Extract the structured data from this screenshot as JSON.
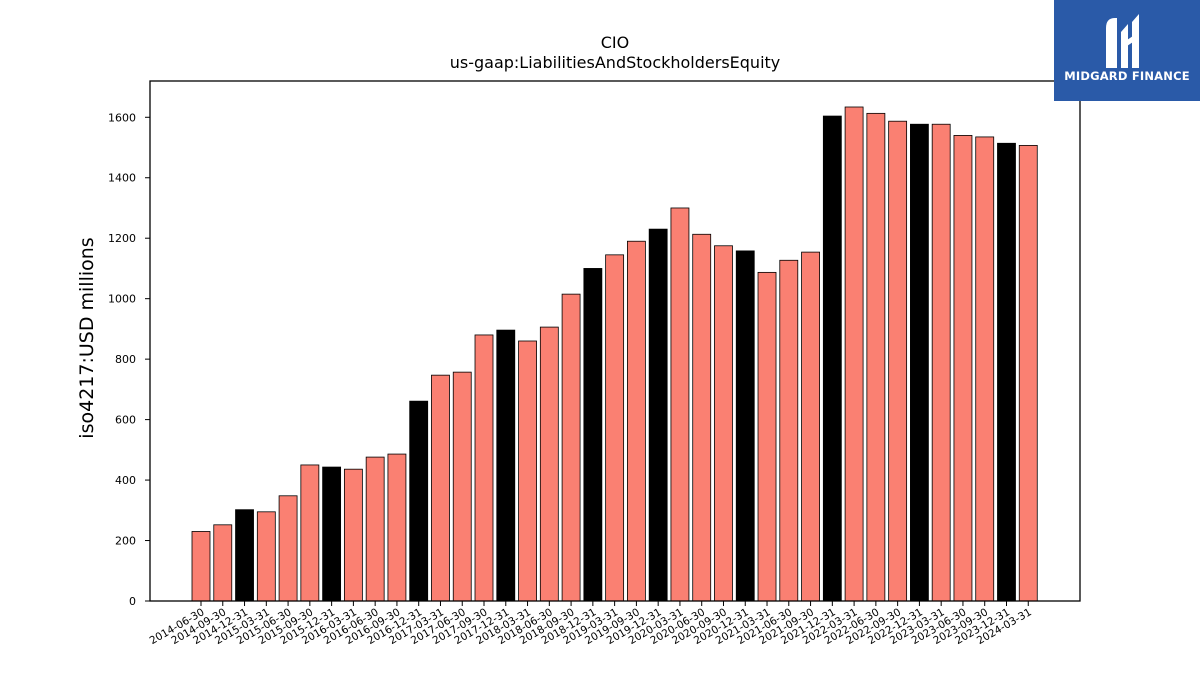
{
  "chart_data": {
    "type": "bar",
    "title": "CIO",
    "subtitle": "us-gaap:LiabilitiesAndStockholdersEquity",
    "ylabel": "iso4217:USD  millions",
    "xlabel": "",
    "ylim": [
      0,
      1720
    ],
    "yticks": [
      0,
      200,
      400,
      600,
      800,
      1000,
      1200,
      1400,
      1600
    ],
    "grid": false,
    "categories": [
      "2014-06-30",
      "2014-09-30",
      "2014-12-31",
      "2015-03-31",
      "2015-06-30",
      "2015-09-30",
      "2015-12-31",
      "2016-03-31",
      "2016-06-30",
      "2016-09-30",
      "2016-12-31",
      "2017-03-31",
      "2017-06-30",
      "2017-09-30",
      "2017-12-31",
      "2018-03-31",
      "2018-06-30",
      "2018-09-30",
      "2018-12-31",
      "2019-03-31",
      "2019-09-30",
      "2019-12-31",
      "2020-03-31",
      "2020-06-30",
      "2020-09-30",
      "2020-12-31",
      "2021-03-31",
      "2021-06-30",
      "2021-09-30",
      "2021-12-31",
      "2022-03-31",
      "2022-06-30",
      "2022-09-30",
      "2022-12-31",
      "2023-03-31",
      "2023-06-30",
      "2023-09-30",
      "2023-12-31",
      "2024-03-31"
    ],
    "values": [
      230,
      252,
      302,
      295,
      348,
      450,
      443,
      436,
      476,
      486,
      661,
      747,
      757,
      880,
      896,
      860,
      906,
      1015,
      1100,
      1145,
      1190,
      1230,
      1300,
      1213,
      1175,
      1158,
      1087,
      1127,
      1154,
      1604,
      1634,
      1613,
      1587,
      1577,
      1577,
      1540,
      1535,
      1514,
      1507
    ],
    "highlight": [
      false,
      false,
      true,
      false,
      false,
      false,
      true,
      false,
      false,
      false,
      true,
      false,
      false,
      false,
      true,
      false,
      false,
      false,
      true,
      false,
      false,
      true,
      false,
      false,
      false,
      true,
      false,
      false,
      false,
      true,
      false,
      false,
      false,
      true,
      false,
      false,
      false,
      true,
      false
    ],
    "colors": {
      "bar": "#fa8072",
      "highlight": "#000000",
      "edge": "#000000"
    }
  },
  "logo": {
    "text": "MIDGARD FINANCE",
    "background": "#2a5aa8"
  }
}
